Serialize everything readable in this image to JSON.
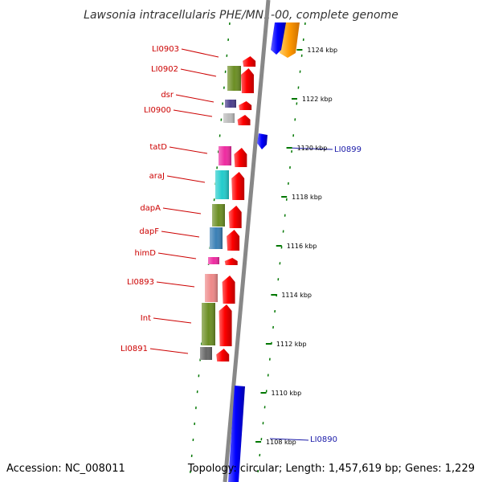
{
  "header": {
    "title": "Lawsonia intracellularis PHE/MN1-00, complete genome"
  },
  "footer": {
    "accession": "Accession: NC_008011",
    "stats": "Topology: circular; Length: 1,457,619 bp; Genes: 1,229"
  },
  "colors": {
    "forward_gene": "#ff0000",
    "reverse_gene": "#0000ff",
    "orange_gene": "#ff9900",
    "backbone": "#888888",
    "tick": "#007700",
    "label_red": "#cc0000",
    "label_blue": "#1a1aa8"
  },
  "scale": {
    "unit": "kbp",
    "ticks": [
      {
        "label": "1124 kbp",
        "kbp": 1124
      },
      {
        "label": "1122 kbp",
        "kbp": 1122
      },
      {
        "label": "1120 kbp",
        "kbp": 1120
      },
      {
        "label": "1118 kbp",
        "kbp": 1118
      },
      {
        "label": "1116 kbp",
        "kbp": 1116
      },
      {
        "label": "1114 kbp",
        "kbp": 1114
      },
      {
        "label": "1112 kbp",
        "kbp": 1112
      },
      {
        "label": "1110 kbp",
        "kbp": 1110
      },
      {
        "label": "1108 kbp",
        "kbp": 1108
      }
    ]
  },
  "genes": [
    {
      "id": "LI0903",
      "label": "LI0903",
      "strand": "forward",
      "color": "#ff0000"
    },
    {
      "id": "LI0902",
      "label": "LI0902",
      "strand": "forward",
      "color": "#ff0000",
      "cog_color": "#6b8e23"
    },
    {
      "id": "dsr",
      "label": "dsr",
      "strand": "forward",
      "color": "#ff0000",
      "cog_color": "#4b3f8c"
    },
    {
      "id": "LI0900",
      "label": "LI0900",
      "strand": "forward",
      "color": "#ff0000",
      "cog_color": "#bbbbbb"
    },
    {
      "id": "tatD",
      "label": "tatD",
      "strand": "forward",
      "color": "#ff0000",
      "cog_color": "#ee2aa0"
    },
    {
      "id": "araJ",
      "label": "araJ",
      "strand": "forward",
      "color": "#ff0000",
      "cog_color": "#22cccc"
    },
    {
      "id": "dapA",
      "label": "dapA",
      "strand": "forward",
      "color": "#ff0000",
      "cog_color": "#6b8e23"
    },
    {
      "id": "dapF",
      "label": "dapF",
      "strand": "forward",
      "color": "#ff0000",
      "cog_color": "#3a7fb5"
    },
    {
      "id": "himD",
      "label": "himD",
      "strand": "forward",
      "color": "#ff0000",
      "cog_color": "#ee2aa0"
    },
    {
      "id": "LI0893",
      "label": "LI0893",
      "strand": "forward",
      "color": "#ff0000",
      "cog_color": "#ee8888"
    },
    {
      "id": "Int",
      "label": "Int",
      "strand": "forward",
      "color": "#ff0000",
      "cog_color": "#6b8e23"
    },
    {
      "id": "LI0891",
      "label": "LI0891",
      "strand": "forward",
      "color": "#ff0000",
      "cog_color": "#666666"
    },
    {
      "id": "LI0899",
      "label": "LI0899",
      "strand": "reverse",
      "color": "#0000ff"
    },
    {
      "id": "LI0890",
      "label": "LI0890",
      "strand": "reverse",
      "color": "#0000ff"
    }
  ]
}
